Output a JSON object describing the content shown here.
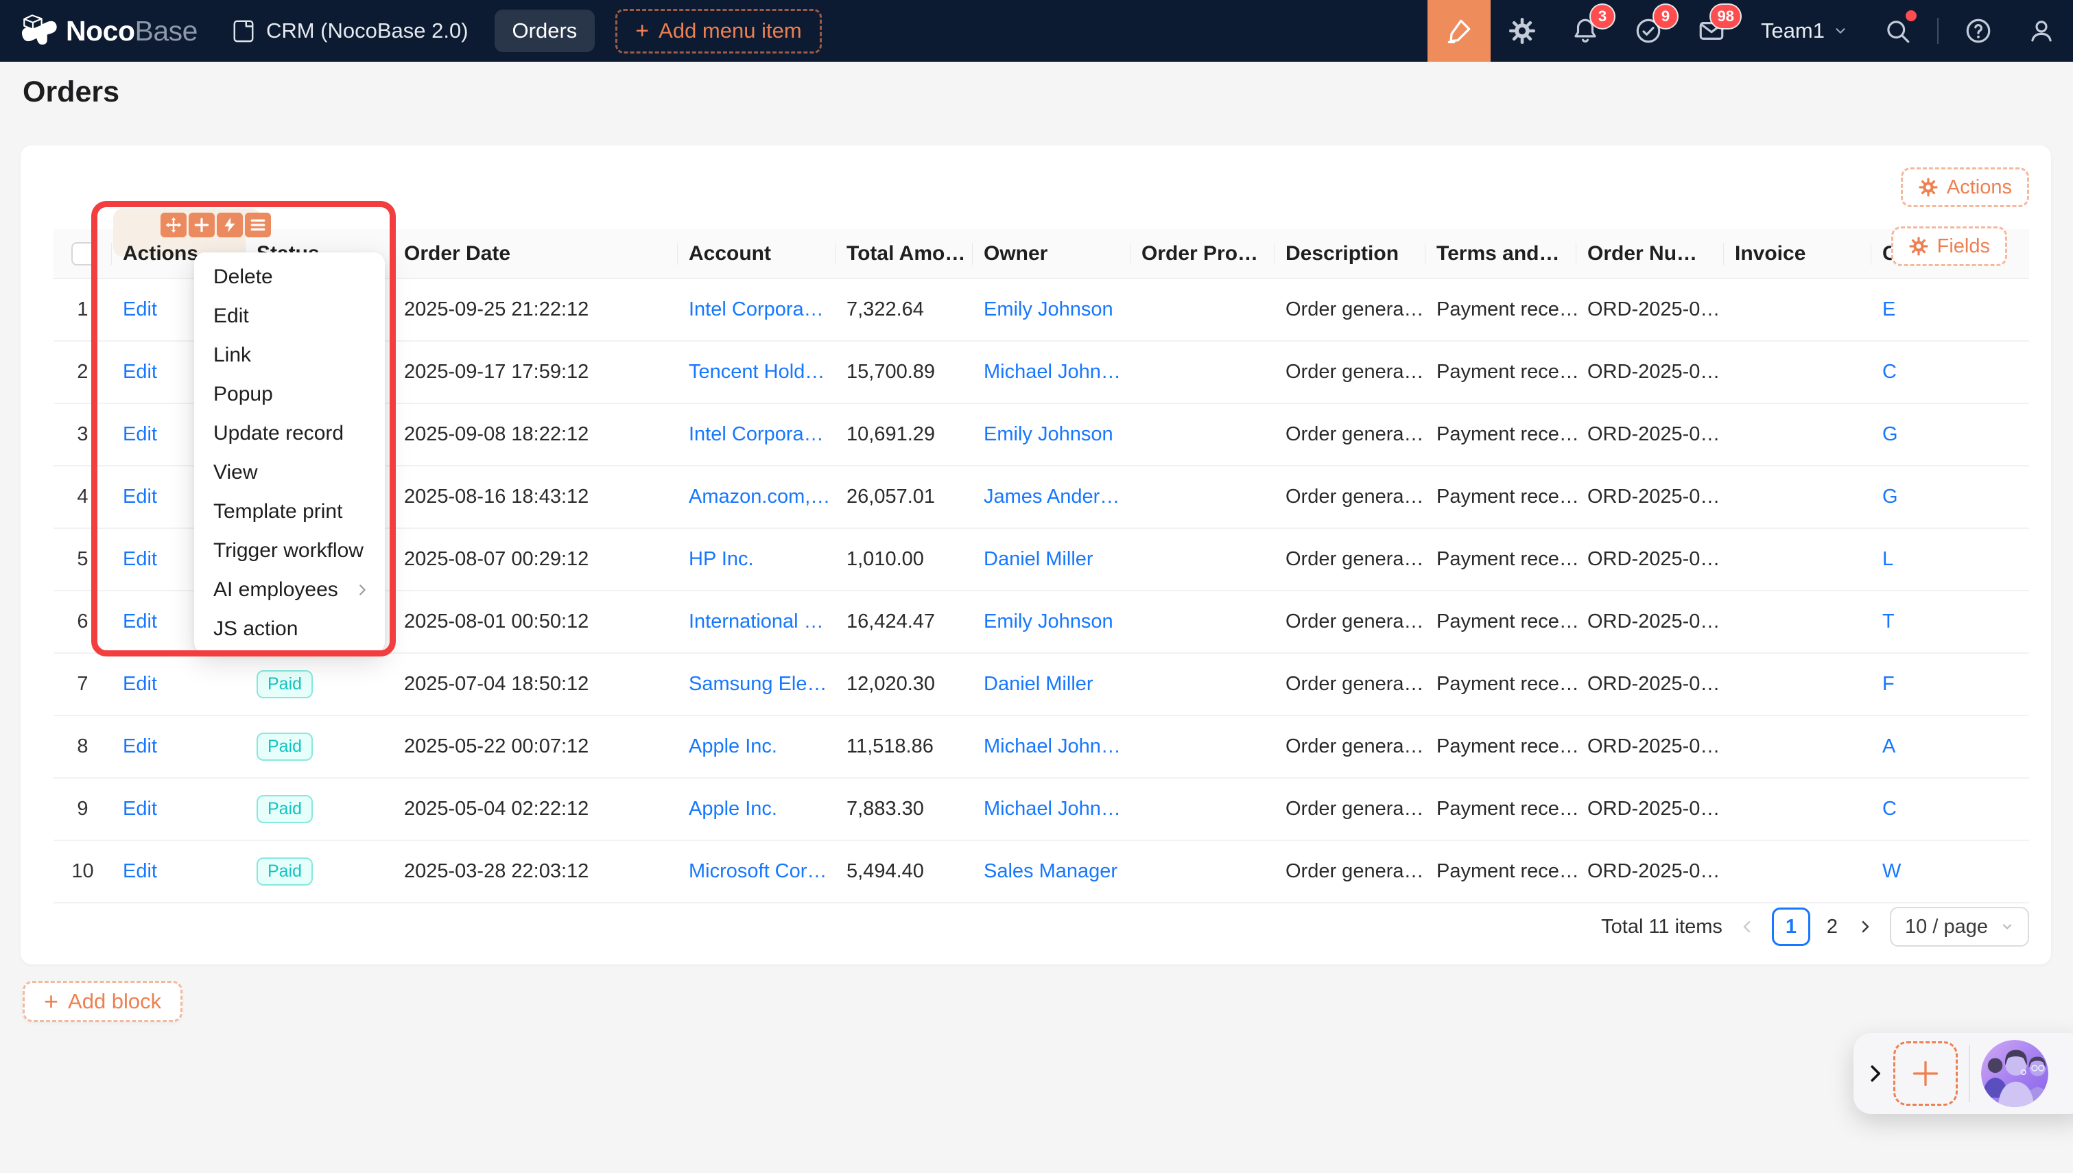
{
  "navbar": {
    "logo": {
      "bold": "Noco",
      "light": "Base"
    },
    "crm_label": "CRM (NocoBase 2.0)",
    "orders_tab": "Orders",
    "add_menu_item_label": "Add menu item",
    "team_label": "Team1",
    "badges": {
      "notifications": "3",
      "tasks": "9",
      "messages": "98"
    }
  },
  "page": {
    "title": "Orders",
    "add_block_label": "Add block"
  },
  "toolbar": {
    "actions_label": "Actions",
    "fields_label": "Fields"
  },
  "designer_menu": {
    "items": [
      {
        "label": "Delete"
      },
      {
        "label": "Edit"
      },
      {
        "label": "Link"
      },
      {
        "label": "Popup"
      },
      {
        "label": "Update record"
      },
      {
        "label": "View"
      },
      {
        "label": "Template print"
      },
      {
        "label": "Trigger workflow"
      },
      {
        "label": "AI employees",
        "submenu": true
      },
      {
        "label": "JS action"
      }
    ]
  },
  "table": {
    "columns": [
      {
        "key": "num",
        "label": "",
        "type": "index"
      },
      {
        "key": "action",
        "label": "Actions",
        "type": "link",
        "highlighted": true
      },
      {
        "key": "status",
        "label": "Status",
        "type": "badge"
      },
      {
        "key": "order_date",
        "label": "Order Date",
        "type": "text"
      },
      {
        "key": "account",
        "label": "Account",
        "type": "link"
      },
      {
        "key": "total",
        "label": "Total Amo…",
        "type": "text"
      },
      {
        "key": "owner",
        "label": "Owner",
        "type": "link"
      },
      {
        "key": "order_product",
        "label": "Order Pro…",
        "type": "text"
      },
      {
        "key": "description",
        "label": "Description",
        "type": "text"
      },
      {
        "key": "terms",
        "label": "Terms and…",
        "type": "text"
      },
      {
        "key": "order_number",
        "label": "Order Nu…",
        "type": "text"
      },
      {
        "key": "invoice",
        "label": "Invoice",
        "type": "text"
      },
      {
        "key": "contact",
        "label": "C",
        "type": "link"
      }
    ],
    "rows": [
      {
        "num": "1",
        "action": "Edit",
        "status": "",
        "order_date": "2025-09-25 21:22:12",
        "account": "Intel Corpora…",
        "total": "7,322.64",
        "owner": "Emily Johnson",
        "order_product": "",
        "description": "Order genera…",
        "terms": "Payment rece…",
        "order_number": "ORD-2025-0…",
        "invoice": "",
        "contact": "E"
      },
      {
        "num": "2",
        "action": "Edit",
        "status": "",
        "order_date": "2025-09-17 17:59:12",
        "account": "Tencent Hold…",
        "total": "15,700.89",
        "owner": "Michael John…",
        "order_product": "",
        "description": "Order genera…",
        "terms": "Payment rece…",
        "order_number": "ORD-2025-0…",
        "invoice": "",
        "contact": "C"
      },
      {
        "num": "3",
        "action": "Edit",
        "status": "",
        "order_date": "2025-09-08 18:22:12",
        "account": "Intel Corpora…",
        "total": "10,691.29",
        "owner": "Emily Johnson",
        "order_product": "",
        "description": "Order genera…",
        "terms": "Payment rece…",
        "order_number": "ORD-2025-0…",
        "invoice": "",
        "contact": "G"
      },
      {
        "num": "4",
        "action": "Edit",
        "status": "",
        "order_date": "2025-08-16 18:43:12",
        "account": "Amazon.com,…",
        "total": "26,057.01",
        "owner": "James Ander…",
        "order_product": "",
        "description": "Order genera…",
        "terms": "Payment rece…",
        "order_number": "ORD-2025-0…",
        "invoice": "",
        "contact": "G"
      },
      {
        "num": "5",
        "action": "Edit",
        "status": "",
        "order_date": "2025-08-07 00:29:12",
        "account": "HP Inc.",
        "total": "1,010.00",
        "owner": "Daniel Miller",
        "order_product": "",
        "description": "Order genera…",
        "terms": "Payment rece…",
        "order_number": "ORD-2025-0…",
        "invoice": "",
        "contact": "L"
      },
      {
        "num": "6",
        "action": "Edit",
        "status": "",
        "order_date": "2025-08-01 00:50:12",
        "account": "International …",
        "total": "16,424.47",
        "owner": "Emily Johnson",
        "order_product": "",
        "description": "Order genera…",
        "terms": "Payment rece…",
        "order_number": "ORD-2025-0…",
        "invoice": "",
        "contact": "T"
      },
      {
        "num": "7",
        "action": "Edit",
        "status": "Paid",
        "order_date": "2025-07-04 18:50:12",
        "account": "Samsung Ele…",
        "total": "12,020.30",
        "owner": "Daniel Miller",
        "order_product": "",
        "description": "Order genera…",
        "terms": "Payment rece…",
        "order_number": "ORD-2025-0…",
        "invoice": "",
        "contact": "F"
      },
      {
        "num": "8",
        "action": "Edit",
        "status": "Paid",
        "order_date": "2025-05-22 00:07:12",
        "account": "Apple Inc.",
        "total": "11,518.86",
        "owner": "Michael John…",
        "order_product": "",
        "description": "Order genera…",
        "terms": "Payment rece…",
        "order_number": "ORD-2025-0…",
        "invoice": "",
        "contact": "A"
      },
      {
        "num": "9",
        "action": "Edit",
        "status": "Paid",
        "order_date": "2025-05-04 02:22:12",
        "account": "Apple Inc.",
        "total": "7,883.30",
        "owner": "Michael John…",
        "order_product": "",
        "description": "Order genera…",
        "terms": "Payment rece…",
        "order_number": "ORD-2025-0…",
        "invoice": "",
        "contact": "C"
      },
      {
        "num": "10",
        "action": "Edit",
        "status": "Paid",
        "order_date": "2025-03-28 22:03:12",
        "account": "Microsoft Cor…",
        "total": "5,494.40",
        "owner": "Sales Manager",
        "order_product": "",
        "description": "Order genera…",
        "terms": "Payment rece…",
        "order_number": "ORD-2025-0…",
        "invoice": "",
        "contact": "W"
      }
    ]
  },
  "pagination": {
    "total_label": "Total 11 items",
    "pages": [
      "1",
      "2"
    ],
    "current": "1",
    "page_size_label": "10 / page"
  },
  "colors": {
    "accent_orange": "#EE7F50",
    "designer_orange": "#EC8A5F",
    "annotation_red": "#F23E3E",
    "link_blue": "#1677FF",
    "paid_text": "#13C2C2",
    "paid_bg": "#E6FFFB",
    "paid_border": "#87E8DE",
    "navbar_bg": "#0C1B31",
    "badge_red": "#FF4D4F"
  }
}
